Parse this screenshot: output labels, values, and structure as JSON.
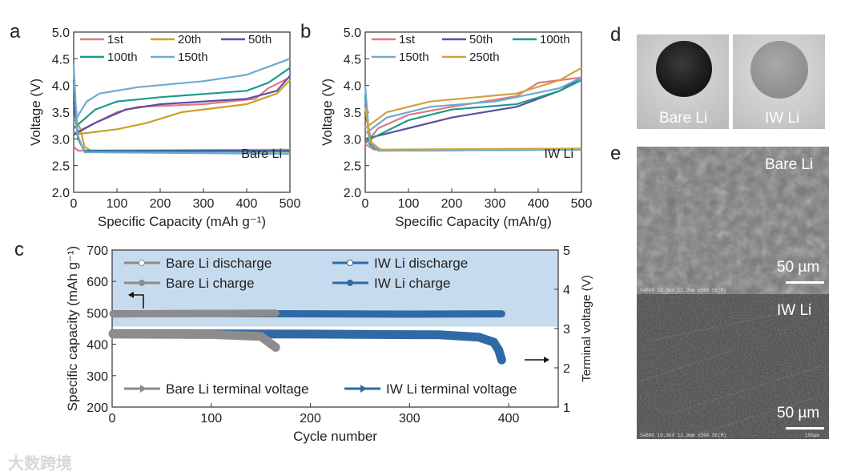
{
  "panels": {
    "a": "a",
    "b": "b",
    "c": "c",
    "d": "d",
    "e": "e"
  },
  "watermark": "大数跨境",
  "panel_d": {
    "left_label": "Bare Li",
    "right_label": "IW Li"
  },
  "panel_e": {
    "top_label": "Bare Li",
    "bottom_label": "IW Li",
    "scale_top": "50 µm",
    "scale_bottom": "50 µm",
    "meta_top": "S4800 10.0kV 11.9mm x500 SE(M)",
    "meta_bottom": "S4800 10.0kV 12.0mm x500 SE(M)",
    "meta_scale": "100µm"
  },
  "colors": {
    "1st": "#e0787e",
    "20th": "#c9a128",
    "50th": "#5a4ea6",
    "100th": "#1c9a8e",
    "150th": "#70a9d2",
    "250th": "#cfa33a",
    "bare": "#8c8c8c",
    "iw": "#2f6aa6",
    "shade": "#c7dbef"
  },
  "chart_data": [
    {
      "id": "a",
      "type": "line",
      "title": "",
      "annotation": "Bare Li",
      "xlabel": "Specific Capacity (mAh g⁻¹)",
      "ylabel": "Voltage (V)",
      "xlim": [
        0,
        500
      ],
      "ylim": [
        2.0,
        5.0
      ],
      "xticks": [
        "0",
        "100",
        "200",
        "300",
        "400",
        "500"
      ],
      "yticks": [
        "2.0",
        "2.5",
        "3.0",
        "3.5",
        "4.0",
        "4.5",
        "5.0"
      ],
      "legend": "top",
      "series": [
        {
          "name": "1st",
          "color": "#e0787e",
          "charge": [
            [
              0,
              3.1
            ],
            [
              50,
              3.3
            ],
            [
              100,
              3.5
            ],
            [
              150,
              3.6
            ],
            [
              300,
              3.65
            ],
            [
              420,
              3.75
            ],
            [
              450,
              3.95
            ],
            [
              500,
              4.15
            ]
          ],
          "discharge": [
            [
              0,
              2.85
            ],
            [
              10,
              2.78
            ],
            [
              500,
              2.78
            ]
          ]
        },
        {
          "name": "20th",
          "color": "#c9a128",
          "charge": [
            [
              0,
              3.08
            ],
            [
              100,
              3.18
            ],
            [
              170,
              3.3
            ],
            [
              250,
              3.5
            ],
            [
              400,
              3.65
            ],
            [
              470,
              3.85
            ],
            [
              500,
              4.1
            ]
          ],
          "discharge": [
            [
              0,
              3.4
            ],
            [
              15,
              3.2
            ],
            [
              25,
              2.85
            ],
            [
              40,
              2.78
            ],
            [
              500,
              2.8
            ]
          ]
        },
        {
          "name": "50th",
          "color": "#5a4ea6",
          "charge": [
            [
              0,
              3.08
            ],
            [
              50,
              3.3
            ],
            [
              120,
              3.55
            ],
            [
              200,
              3.65
            ],
            [
              400,
              3.75
            ],
            [
              470,
              3.9
            ],
            [
              500,
              4.18
            ]
          ],
          "discharge": [
            [
              0,
              3.7
            ],
            [
              10,
              3.0
            ],
            [
              25,
              2.78
            ],
            [
              500,
              2.78
            ]
          ]
        },
        {
          "name": "100th",
          "color": "#1c9a8e",
          "charge": [
            [
              0,
              3.2
            ],
            [
              50,
              3.55
            ],
            [
              100,
              3.7
            ],
            [
              200,
              3.78
            ],
            [
              400,
              3.9
            ],
            [
              450,
              4.05
            ],
            [
              500,
              4.33
            ]
          ],
          "discharge": [
            [
              0,
              4.1
            ],
            [
              10,
              3.0
            ],
            [
              25,
              2.77
            ],
            [
              500,
              2.76
            ]
          ]
        },
        {
          "name": "150th",
          "color": "#70a9d2",
          "charge": [
            [
              0,
              3.3
            ],
            [
              30,
              3.7
            ],
            [
              60,
              3.85
            ],
            [
              150,
              3.97
            ],
            [
              300,
              4.08
            ],
            [
              400,
              4.2
            ],
            [
              450,
              4.35
            ],
            [
              500,
              4.5
            ]
          ],
          "discharge": [
            [
              0,
              4.4
            ],
            [
              8,
              3.1
            ],
            [
              25,
              2.75
            ],
            [
              500,
              2.72
            ]
          ]
        }
      ]
    },
    {
      "id": "b",
      "type": "line",
      "title": "",
      "annotation": "IW Li",
      "xlabel": "Specific Capacity (mAh/g)",
      "ylabel": "Voltage (V)",
      "xlim": [
        0,
        500
      ],
      "ylim": [
        2.0,
        5.0
      ],
      "xticks": [
        "0",
        "100",
        "200",
        "300",
        "400",
        "500"
      ],
      "yticks": [
        "2.0",
        "2.5",
        "3.0",
        "3.5",
        "4.0",
        "4.5",
        "5.0"
      ],
      "legend": "top",
      "series": [
        {
          "name": "1st",
          "color": "#e0787e",
          "charge": [
            [
              0,
              2.9
            ],
            [
              30,
              3.2
            ],
            [
              100,
              3.45
            ],
            [
              200,
              3.6
            ],
            [
              350,
              3.8
            ],
            [
              400,
              4.05
            ],
            [
              450,
              4.1
            ],
            [
              500,
              4.15
            ]
          ],
          "discharge": [
            [
              0,
              2.9
            ],
            [
              20,
              2.8
            ],
            [
              500,
              2.8
            ]
          ]
        },
        {
          "name": "50th",
          "color": "#5a4ea6",
          "charge": [
            [
              0,
              3.0
            ],
            [
              100,
              3.2
            ],
            [
              200,
              3.4
            ],
            [
              350,
              3.6
            ],
            [
              450,
              3.9
            ],
            [
              500,
              4.15
            ]
          ],
          "discharge": [
            [
              0,
              3.5
            ],
            [
              15,
              2.9
            ],
            [
              40,
              2.78
            ],
            [
              500,
              2.8
            ]
          ]
        },
        {
          "name": "100th",
          "color": "#1c9a8e",
          "charge": [
            [
              0,
              2.95
            ],
            [
              100,
              3.35
            ],
            [
              200,
              3.55
            ],
            [
              350,
              3.65
            ],
            [
              450,
              3.9
            ],
            [
              500,
              4.1
            ]
          ],
          "discharge": [
            [
              0,
              3.8
            ],
            [
              10,
              2.9
            ],
            [
              30,
              2.78
            ],
            [
              500,
              2.8
            ]
          ]
        },
        {
          "name": "150th",
          "color": "#70a9d2",
          "charge": [
            [
              0,
              3.1
            ],
            [
              50,
              3.4
            ],
            [
              150,
              3.6
            ],
            [
              300,
              3.7
            ],
            [
              450,
              3.95
            ],
            [
              500,
              4.15
            ]
          ],
          "discharge": [
            [
              0,
              4.0
            ],
            [
              10,
              2.95
            ],
            [
              30,
              2.78
            ],
            [
              500,
              2.8
            ]
          ]
        },
        {
          "name": "250th",
          "color": "#cfa33a",
          "charge": [
            [
              0,
              3.2
            ],
            [
              50,
              3.5
            ],
            [
              150,
              3.7
            ],
            [
              350,
              3.85
            ],
            [
              450,
              4.1
            ],
            [
              500,
              4.33
            ]
          ],
          "discharge": [
            [
              0,
              3.6
            ],
            [
              12,
              2.95
            ],
            [
              35,
              2.8
            ],
            [
              500,
              2.82
            ]
          ]
        }
      ]
    },
    {
      "id": "c",
      "type": "line",
      "title": "",
      "xlabel": "Cycle number",
      "ylabel": "Specific capacity (mAh g⁻¹)",
      "y2label": "Terminal voltage (V)",
      "xlim": [
        0,
        450
      ],
      "ylim": [
        200,
        700
      ],
      "y2lim": [
        1,
        5
      ],
      "xticks": [
        "0",
        "100",
        "200",
        "300",
        "400"
      ],
      "yticks": [
        "200",
        "300",
        "400",
        "500",
        "600",
        "700"
      ],
      "y2ticks": [
        "1",
        "2",
        "3",
        "4",
        "5"
      ],
      "shaded_above_voltage": 3.05,
      "legend_top": [
        "Bare Li discharge",
        "IW Li discharge",
        "Bare Li charge",
        "IW Li charge"
      ],
      "legend_bottom": [
        "Bare Li terminal voltage",
        "IW Li terminal voltage"
      ],
      "series": [
        {
          "name": "IW Li discharge",
          "axis": "left",
          "color": "#2f6aa6",
          "points": [
            [
              1,
              497
            ],
            [
              100,
              498
            ],
            [
              200,
              497
            ],
            [
              300,
              496
            ],
            [
              393,
              497
            ]
          ]
        },
        {
          "name": "Bare Li discharge",
          "axis": "left",
          "color": "#8c8c8c",
          "points": [
            [
              1,
              497
            ],
            [
              80,
              498
            ],
            [
              165,
              499
            ]
          ]
        },
        {
          "name": "IW Li terminal voltage",
          "axis": "right",
          "color": "#2f6aa6",
          "points": [
            [
              1,
              2.87
            ],
            [
              200,
              2.86
            ],
            [
              330,
              2.84
            ],
            [
              370,
              2.78
            ],
            [
              385,
              2.65
            ],
            [
              390,
              2.45
            ],
            [
              393,
              2.2
            ]
          ]
        },
        {
          "name": "Bare Li terminal voltage",
          "axis": "right",
          "color": "#8c8c8c",
          "points": [
            [
              1,
              2.86
            ],
            [
              100,
              2.85
            ],
            [
              150,
              2.8
            ],
            [
              158,
              2.65
            ],
            [
              165,
              2.52
            ]
          ]
        }
      ]
    }
  ]
}
